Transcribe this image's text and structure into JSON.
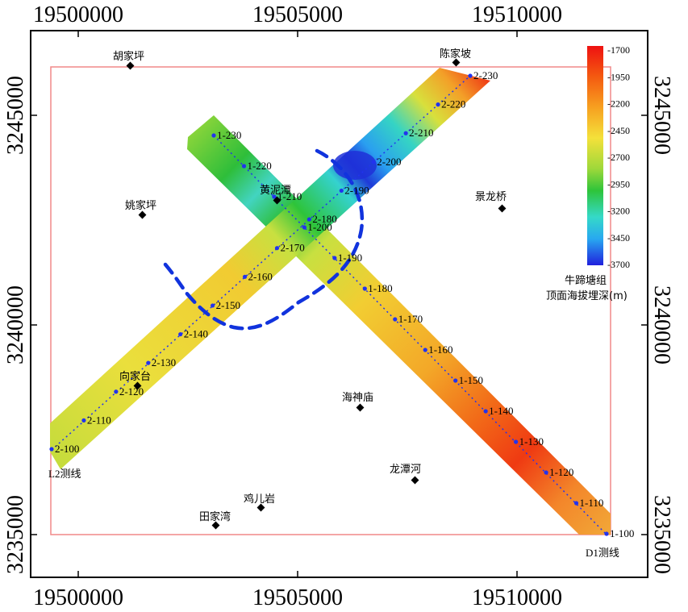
{
  "axes": {
    "top": [
      "19500000",
      "19505000",
      "19510000"
    ],
    "bottom": [
      "19500000",
      "19505000",
      "19510000"
    ],
    "left": [
      "3245000",
      "3240000",
      "3235000"
    ],
    "right": [
      "3245000",
      "3240000",
      "3235000"
    ]
  },
  "places": [
    {
      "name": "胡家坪"
    },
    {
      "name": "陈家坡"
    },
    {
      "name": "姚家坪"
    },
    {
      "name": "黄泥潭"
    },
    {
      "name": "景龙桥"
    },
    {
      "name": "向家台"
    },
    {
      "name": "海神庙"
    },
    {
      "name": "龙潭河"
    },
    {
      "name": "鸡儿岩"
    },
    {
      "name": "田家湾"
    }
  ],
  "lines": {
    "d1_label": "D1测线",
    "l2_label": "L2测线",
    "d1_stations": [
      "1-100",
      "1-110",
      "1-120",
      "1-130",
      "1-140",
      "1-150",
      "1-160",
      "1-170",
      "1-180",
      "1-190",
      "1-200",
      "1-210",
      "1-220",
      "1-230"
    ],
    "l2_stations": [
      "2-100",
      "2-110",
      "2-120",
      "2-130",
      "2-140",
      "2-150",
      "2-160",
      "2-170",
      "2-180",
      "2-190",
      "2-200",
      "2-210",
      "2-220",
      "2-230"
    ]
  },
  "legend": {
    "values": [
      "-1700",
      "-1950",
      "-2200",
      "-2450",
      "-2700",
      "-2950",
      "-3200",
      "-3450",
      "-3700"
    ],
    "title_line1": "牛蹄塘组",
    "title_line2": "顶面海拔埋深(m)"
  },
  "colors": {
    "deep": "#2222dd",
    "shallow": "#ee1111",
    "boundary": "#f08888",
    "dashed_outline": "#1133dd",
    "station_dot": "#2233ee"
  }
}
